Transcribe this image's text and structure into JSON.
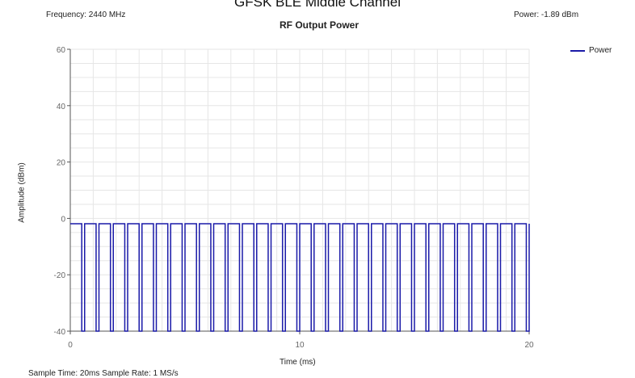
{
  "header": {
    "top_title": "GFSK BLE Middle Channel",
    "frequency": "Frequency: 2440 MHz",
    "power_readout": "Power: -1.89 dBm"
  },
  "footer": {
    "sample_info": "Sample Time: 20ms   Sample Rate: 1 MS/s"
  },
  "colors": {
    "series": "#1a1aa8",
    "grid": "#e6e6e6",
    "axis": "#555555",
    "text": "#666666"
  },
  "chart_data": {
    "type": "line",
    "title": "RF Output Power",
    "xlabel": "Time (ms)",
    "ylabel": "Amplitude (dBm)",
    "xlim": [
      0,
      20
    ],
    "ylim": [
      -40,
      60
    ],
    "x_ticks": [
      0,
      10,
      20
    ],
    "y_ticks": [
      -40,
      -20,
      0,
      20,
      40,
      60
    ],
    "legend": "top-right",
    "grid": true,
    "series": [
      {
        "name": "Power",
        "pattern": "periodic rectangular burst",
        "high_dBm": -1.89,
        "low_dBm": -40,
        "period_ms": 0.625,
        "pulse_width_ms": 0.5,
        "num_pulses": 32
      }
    ]
  }
}
